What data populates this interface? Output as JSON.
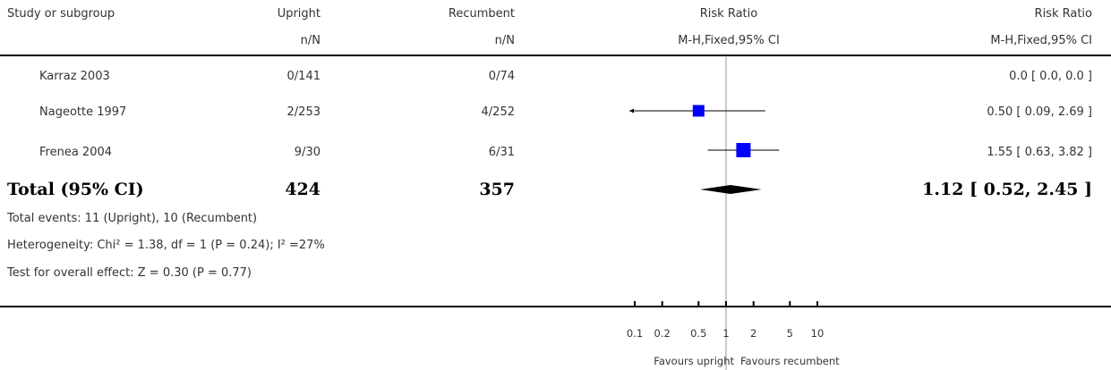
{
  "header": {
    "study": "Study or subgroup",
    "group1": "Upright",
    "group2": "Recumbent",
    "effect_col": "Risk Ratio",
    "effect_col_plot": "Risk Ratio",
    "sub_group1": "n/N",
    "sub_group2": "n/N",
    "method_col": "M-H,Fixed,95% CI",
    "method_col_plot": "M-H,Fixed,95% CI"
  },
  "studies": [
    {
      "name": "Karraz 2003",
      "g1": "0/141",
      "g2": "0/74",
      "rr_text": "0.0 [ 0.0, 0.0 ]"
    },
    {
      "name": "Nageotte 1997",
      "g1": "2/253",
      "g2": "4/252",
      "rr_text": "0.50 [ 0.09, 2.69 ]"
    },
    {
      "name": "Frenea 2004",
      "g1": "9/30",
      "g2": "6/31",
      "rr_text": "1.55 [ 0.63, 3.82 ]"
    }
  ],
  "total": {
    "label": "Total (95% CI)",
    "g1": "424",
    "g2": "357",
    "rr_text": "1.12 [ 0.52, 2.45 ]"
  },
  "notes": {
    "events": "Total events: 11 (Upright), 10 (Recumbent)",
    "heterogeneity": "Heterogeneity: Chi² = 1.38, df = 1 (P = 0.24); I² =27%",
    "overall": "Test for overall effect: Z = 0.30 (P = 0.77)"
  },
  "axis": {
    "favours_left": "Favours upright",
    "favours_right": "Favours recumbent"
  },
  "chart_data": {
    "type": "forest",
    "scale": "log",
    "xlim": [
      0.1,
      10
    ],
    "ticks": [
      0.1,
      0.2,
      0.5,
      1,
      2,
      5,
      10
    ],
    "tick_labels": [
      "0.1",
      "0.2",
      "0.5",
      "1",
      "2",
      "5",
      "10"
    ],
    "null_line": 1,
    "marker_color": "#0000ff",
    "studies": [
      {
        "name": "Karraz 2003",
        "rr": null,
        "lo": null,
        "hi": null,
        "weight": 0
      },
      {
        "name": "Nageotte 1997",
        "rr": 0.5,
        "lo": 0.09,
        "hi": 2.69,
        "weight": 0.5
      },
      {
        "name": "Frenea 2004",
        "rr": 1.55,
        "lo": 0.63,
        "hi": 3.82,
        "weight": 1.0
      }
    ],
    "pooled": {
      "rr": 1.12,
      "lo": 0.52,
      "hi": 2.45
    }
  }
}
